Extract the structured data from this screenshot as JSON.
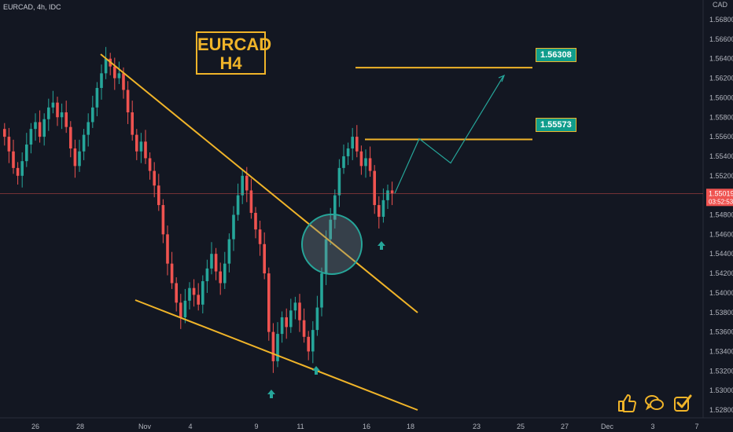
{
  "header": {
    "symbol_line": "EURCAD, 4h, IDC"
  },
  "title_box": {
    "line1": "EURCAD",
    "line2": "H4"
  },
  "currency_label": "CAD",
  "current_price": {
    "price": "1.55019",
    "countdown": "03:52:53"
  },
  "levels": [
    {
      "label": "1.55573",
      "value": 1.55573
    },
    {
      "label": "1.56308",
      "value": 1.56308
    }
  ],
  "colors": {
    "background": "#131722",
    "up": "#26a69a",
    "down": "#ef5350",
    "trendline": "#f0b429",
    "projection": "#26a69a",
    "price_line": "#ef5350"
  },
  "icons": [
    "thumbs-up-icon",
    "chat-bubbles-icon",
    "checkbox-icon"
  ],
  "chart_data": {
    "type": "candlestick",
    "symbol": "EURCAD",
    "timeframe": "4h",
    "ylim": [
      1.527,
      1.57
    ],
    "y_ticks": [
      "1.56800",
      "1.56600",
      "1.56400",
      "1.56200",
      "1.56000",
      "1.55800",
      "1.55600",
      "1.55400",
      "1.55200",
      "1.55000",
      "1.54800",
      "1.54600",
      "1.54400",
      "1.54200",
      "1.54000",
      "1.53800",
      "1.53600",
      "1.53400",
      "1.53200",
      "1.53000",
      "1.52800"
    ],
    "x_ticks": [
      "26",
      "28",
      "Nov",
      "4",
      "9",
      "11",
      "16",
      "18",
      "23",
      "25",
      "27",
      "Dec",
      "3",
      "7"
    ],
    "grid": false,
    "candle_closes": [
      1.556,
      1.5545,
      1.5528,
      1.552,
      1.5535,
      1.5552,
      1.5568,
      1.5575,
      1.556,
      1.5578,
      1.559,
      1.5595,
      1.558,
      1.5585,
      1.557,
      1.5548,
      1.553,
      1.5545,
      1.5562,
      1.5575,
      1.559,
      1.561,
      1.5625,
      1.564,
      1.5632,
      1.562,
      1.5625,
      1.5608,
      1.5585,
      1.5562,
      1.5545,
      1.5555,
      1.5538,
      1.5525,
      1.551,
      1.549,
      1.546,
      1.543,
      1.541,
      1.539,
      1.5375,
      1.5392,
      1.5405,
      1.5398,
      1.5388,
      1.5412,
      1.5425,
      1.544,
      1.5422,
      1.541,
      1.543,
      1.5455,
      1.548,
      1.55,
      1.552,
      1.5505,
      1.5482,
      1.5465,
      1.545,
      1.542,
      1.536,
      1.533,
      1.5358,
      1.5375,
      1.5365,
      1.5382,
      1.539,
      1.5372,
      1.5355,
      1.534,
      1.5362,
      1.5385,
      1.542,
      1.5455,
      1.5475,
      1.55,
      1.5528,
      1.554,
      1.5548,
      1.556,
      1.5545,
      1.553,
      1.5538,
      1.5525,
      1.549,
      1.5478,
      1.5495,
      1.5505,
      1.5502
    ],
    "trendlines": [
      {
        "name": "upper-trendline",
        "points": [
          [
            "Oct 28",
            1.5646
          ],
          [
            "Nov 17",
            1.5376
          ]
        ]
      },
      {
        "name": "lower-trendline",
        "points": [
          [
            "Oct 30",
            1.5373
          ],
          [
            "Nov 18",
            1.5277
          ]
        ]
      }
    ],
    "projection_path": [
      1.5502,
      1.5558,
      1.5533,
      1.5622
    ],
    "annotations": [
      "breakout-circle",
      "arrow-up-1",
      "arrow-up-2",
      "arrow-up-3"
    ]
  }
}
